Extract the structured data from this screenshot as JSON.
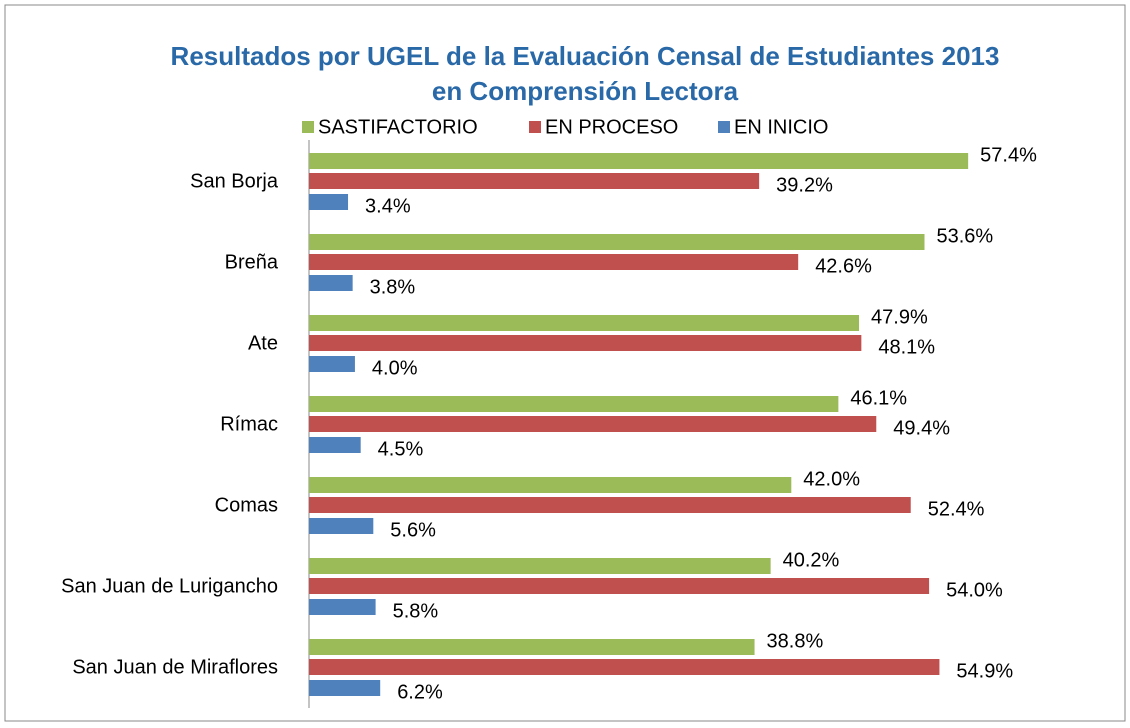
{
  "chart_data": {
    "type": "hbar",
    "title": [
      "Resultados por UGEL de la Evaluación Censal de Estudiantes 2013",
      "en Comprensión Lectora"
    ],
    "categories": [
      "San Borja",
      "Breña",
      "Ate",
      "Rímac",
      "Comas",
      "San Juan de Lurigancho",
      "San Juan de Miraflores"
    ],
    "series": [
      {
        "name": "SASTIFACTORIO",
        "color": "#9bbb59",
        "values": [
          57.4,
          53.6,
          47.9,
          46.1,
          42.0,
          40.2,
          38.8
        ],
        "value_labels": [
          "57.4%",
          "53.6%",
          "47.9%",
          "46.1%",
          "42.0%",
          "40.2%",
          "38.8%"
        ]
      },
      {
        "name": "EN PROCESO",
        "color": "#c0504d",
        "values": [
          39.2,
          42.6,
          48.1,
          49.4,
          52.4,
          54.0,
          54.9
        ],
        "value_labels": [
          "39.2%",
          "42.6%",
          "48.1%",
          "49.4%",
          "52.4%",
          "54.0%",
          "54.9%"
        ]
      },
      {
        "name": "EN INICIO",
        "color": "#4f81bd",
        "values": [
          3.4,
          3.8,
          4.0,
          4.5,
          5.6,
          5.8,
          6.2
        ],
        "value_labels": [
          "3.4%",
          "3.8%",
          "4.0%",
          "4.5%",
          "5.6%",
          "5.8%",
          "6.2%"
        ]
      }
    ],
    "xlim": [
      0,
      60
    ],
    "legend": "top"
  }
}
